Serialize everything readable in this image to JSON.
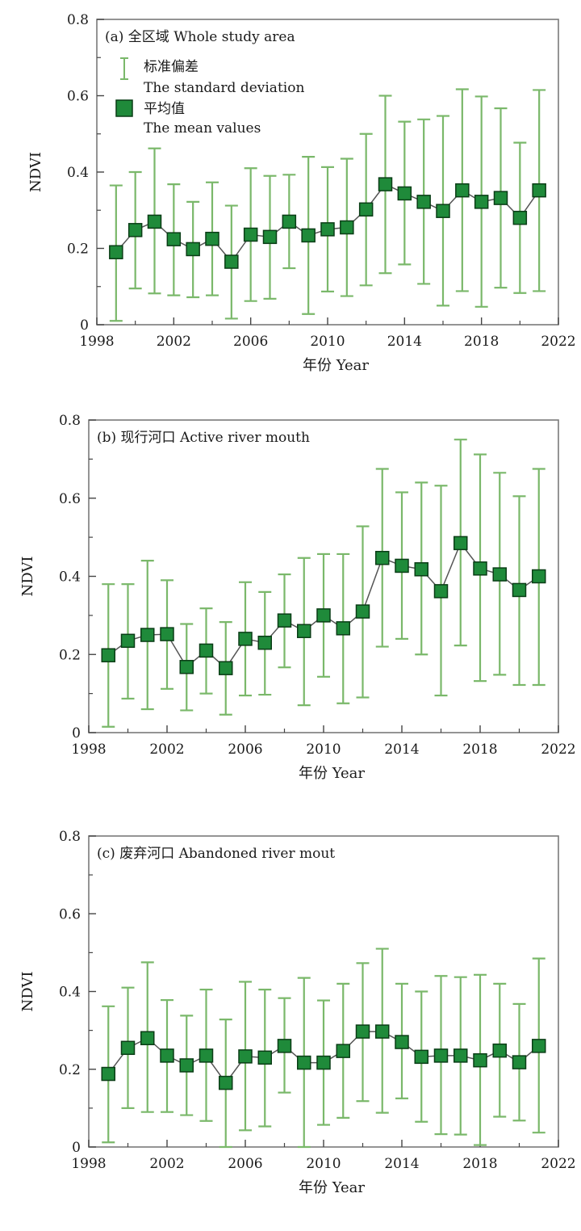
{
  "chart_data": [
    {
      "type": "line",
      "title": "(a) 全区域 Whole study area",
      "xlabel": "年份 Year",
      "ylabel": "NDVI",
      "xlim": [
        1998,
        2022
      ],
      "ylim": [
        0,
        0.8
      ],
      "xticks": [
        "1998",
        "2002",
        "2006",
        "2010",
        "2014",
        "2018",
        "2022"
      ],
      "yticks": [
        "0",
        "0.2",
        "0.4",
        "0.6",
        "0.8"
      ],
      "legend": {
        "placement": "top-left",
        "items": [
          {
            "label": "标准偏差",
            "sublabel": "The standard deviation",
            "kind": "errorbar"
          },
          {
            "label": "平均值",
            "sublabel": "The mean values",
            "kind": "marker"
          }
        ]
      },
      "series": [
        {
          "x": [
            1999,
            2000,
            2001,
            2002,
            2003,
            2004,
            2005,
            2006,
            2007,
            2008,
            2009,
            2010,
            2011,
            2012,
            2013,
            2014,
            2015,
            2016,
            2017,
            2018,
            2019,
            2020,
            2021
          ],
          "mean": [
            0.19,
            0.248,
            0.27,
            0.224,
            0.198,
            0.225,
            0.165,
            0.236,
            0.23,
            0.27,
            0.234,
            0.25,
            0.255,
            0.302,
            0.368,
            0.344,
            0.322,
            0.298,
            0.352,
            0.322,
            0.332,
            0.28,
            0.352
          ],
          "lower": [
            0.01,
            0.095,
            0.082,
            0.077,
            0.072,
            0.077,
            0.016,
            0.062,
            0.068,
            0.148,
            0.028,
            0.087,
            0.075,
            0.103,
            0.135,
            0.158,
            0.107,
            0.05,
            0.088,
            0.047,
            0.097,
            0.083,
            0.088
          ],
          "upper": [
            0.365,
            0.4,
            0.462,
            0.368,
            0.322,
            0.373,
            0.312,
            0.41,
            0.39,
            0.393,
            0.44,
            0.413,
            0.435,
            0.5,
            0.6,
            0.532,
            0.538,
            0.547,
            0.617,
            0.598,
            0.567,
            0.477,
            0.615
          ]
        }
      ]
    },
    {
      "type": "line",
      "title": "(b) 现行河口 Active river mouth",
      "xlabel": "年份 Year",
      "ylabel": "NDVI",
      "xlim": [
        1998,
        2022
      ],
      "ylim": [
        0,
        0.8
      ],
      "xticks": [
        "1998",
        "2002",
        "2006",
        "2010",
        "2014",
        "2018",
        "2022"
      ],
      "yticks": [
        "0",
        "0.2",
        "0.4",
        "0.6",
        "0.8"
      ],
      "series": [
        {
          "x": [
            1999,
            2000,
            2001,
            2002,
            2003,
            2004,
            2005,
            2006,
            2007,
            2008,
            2009,
            2010,
            2011,
            2012,
            2013,
            2014,
            2015,
            2016,
            2017,
            2018,
            2019,
            2020,
            2021
          ],
          "mean": [
            0.198,
            0.235,
            0.25,
            0.252,
            0.168,
            0.21,
            0.165,
            0.24,
            0.23,
            0.287,
            0.26,
            0.3,
            0.267,
            0.31,
            0.447,
            0.427,
            0.418,
            0.362,
            0.485,
            0.42,
            0.405,
            0.365,
            0.4
          ],
          "lower": [
            0.015,
            0.087,
            0.06,
            0.112,
            0.057,
            0.1,
            0.046,
            0.095,
            0.097,
            0.167,
            0.07,
            0.143,
            0.075,
            0.09,
            0.22,
            0.24,
            0.2,
            0.095,
            0.223,
            0.132,
            0.148,
            0.122,
            0.122
          ],
          "upper": [
            0.38,
            0.38,
            0.44,
            0.39,
            0.278,
            0.318,
            0.283,
            0.385,
            0.36,
            0.405,
            0.447,
            0.457,
            0.457,
            0.528,
            0.675,
            0.615,
            0.64,
            0.632,
            0.75,
            0.712,
            0.665,
            0.605,
            0.675
          ]
        }
      ]
    },
    {
      "type": "line",
      "title": "(c) 废弃河口 Abandoned river mout",
      "xlabel": "年份 Year",
      "ylabel": "NDVI",
      "xlim": [
        1998,
        2022
      ],
      "ylim": [
        0,
        0.8
      ],
      "xticks": [
        "1998",
        "2002",
        "2006",
        "2010",
        "2014",
        "2018",
        "2022"
      ],
      "yticks": [
        "0",
        "0.2",
        "0.4",
        "0.6",
        "0.8"
      ],
      "series": [
        {
          "x": [
            1999,
            2000,
            2001,
            2002,
            2003,
            2004,
            2005,
            2006,
            2007,
            2008,
            2009,
            2010,
            2011,
            2012,
            2013,
            2014,
            2015,
            2016,
            2017,
            2018,
            2019,
            2020,
            2021
          ],
          "mean": [
            0.188,
            0.255,
            0.28,
            0.235,
            0.21,
            0.235,
            0.165,
            0.233,
            0.23,
            0.26,
            0.217,
            0.217,
            0.247,
            0.297,
            0.297,
            0.27,
            0.232,
            0.235,
            0.235,
            0.223,
            0.248,
            0.218,
            0.26
          ],
          "lower": [
            0.012,
            0.1,
            0.09,
            0.09,
            0.082,
            0.067,
            0.0,
            0.043,
            0.053,
            0.14,
            0.0,
            0.057,
            0.075,
            0.118,
            0.088,
            0.125,
            0.065,
            0.033,
            0.032,
            0.005,
            0.078,
            0.068,
            0.037
          ],
          "upper": [
            0.362,
            0.41,
            0.475,
            0.378,
            0.338,
            0.405,
            0.328,
            0.425,
            0.405,
            0.383,
            0.435,
            0.377,
            0.42,
            0.473,
            0.51,
            0.42,
            0.4,
            0.44,
            0.437,
            0.443,
            0.42,
            0.368,
            0.485
          ]
        }
      ]
    }
  ]
}
